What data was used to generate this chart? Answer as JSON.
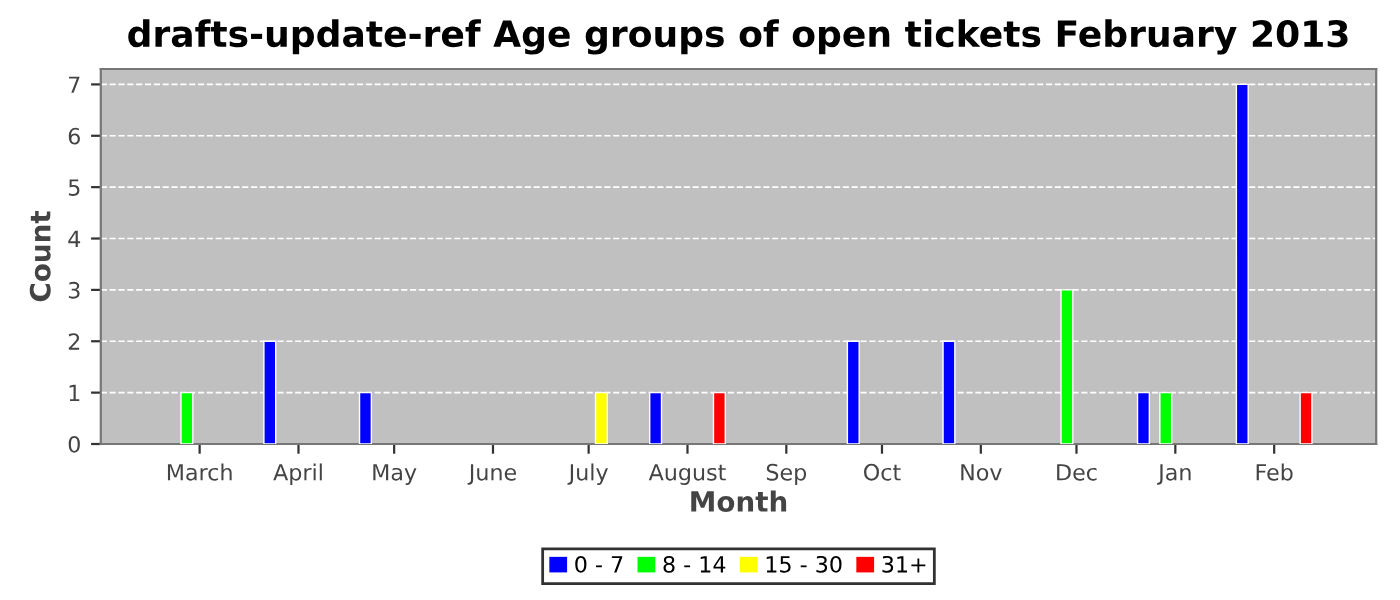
{
  "chart_data": {
    "type": "bar",
    "title": "drafts-update-ref Age groups of open tickets February 2013",
    "xlabel": "Month",
    "ylabel": "Count",
    "xlim": [
      "2012-01-30",
      "2013-03-05"
    ],
    "xticks": [
      {
        "value": "2012-03-01",
        "label": "March"
      },
      {
        "value": "2012-04-01",
        "label": "April"
      },
      {
        "value": "2012-05-01",
        "label": "May"
      },
      {
        "value": "2012-06-01",
        "label": "June"
      },
      {
        "value": "2012-07-01",
        "label": "July"
      },
      {
        "value": "2012-08-01",
        "label": "August"
      },
      {
        "value": "2012-09-01",
        "label": "Sep"
      },
      {
        "value": "2012-10-01",
        "label": "Oct"
      },
      {
        "value": "2012-11-01",
        "label": "Nov"
      },
      {
        "value": "2012-12-01",
        "label": "Dec"
      },
      {
        "value": "2013-01-01",
        "label": "Jan"
      },
      {
        "value": "2013-02-01",
        "label": "Feb"
      }
    ],
    "ylim": [
      0,
      7.3
    ],
    "yticks": [
      0,
      1,
      2,
      3,
      4,
      5,
      6,
      7
    ],
    "grid": "y",
    "legend": "bottom",
    "series": [
      {
        "name": "0 - 7",
        "color": "#0000ff",
        "x": [
          "2012-03-23",
          "2012-04-22",
          "2012-07-22",
          "2012-09-22",
          "2012-10-22",
          "2012-12-22",
          "2013-01-22"
        ],
        "values": [
          2,
          1,
          1,
          2,
          2,
          1,
          7
        ]
      },
      {
        "name": "8 - 14",
        "color": "#00ff00",
        "x": [
          "2012-02-26",
          "2012-11-28",
          "2012-12-29"
        ],
        "values": [
          1,
          3,
          1
        ]
      },
      {
        "name": "15 - 30",
        "color": "#ffff00",
        "x": [
          "2012-07-05"
        ],
        "values": [
          1
        ]
      },
      {
        "name": "31+",
        "color": "#ff0000",
        "x": [
          "2012-08-11",
          "2013-02-11"
        ],
        "values": [
          1,
          1
        ]
      }
    ]
  }
}
